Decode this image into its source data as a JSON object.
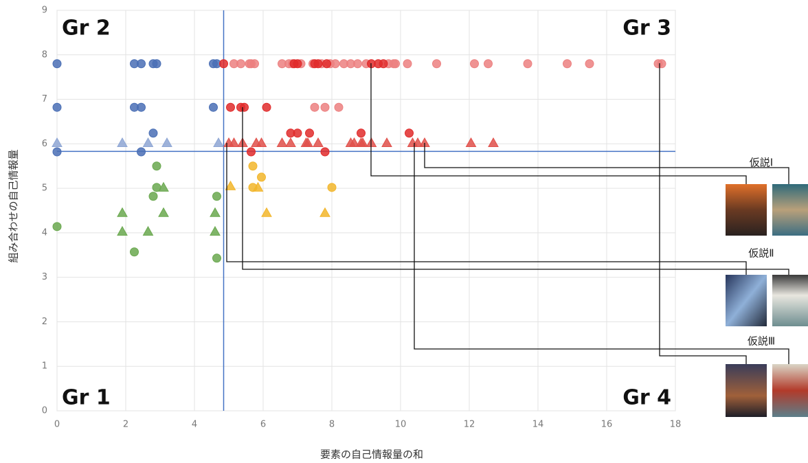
{
  "chart_data": {
    "type": "scatter",
    "x_label": "要素の自己情報量の和",
    "y_label": "組み合わせの自己情報量",
    "xlim": [
      0,
      18
    ],
    "ylim": [
      0,
      9
    ],
    "xticks": [
      0,
      2,
      4,
      6,
      8,
      10,
      12,
      14,
      16,
      18
    ],
    "yticks": [
      0,
      1,
      2,
      3,
      4,
      5,
      6,
      7,
      8,
      9
    ],
    "grid": true,
    "reference_lines": {
      "x": 4.85,
      "y": 5.83,
      "color": "#4472c4"
    },
    "quadrant_labels": [
      "Gr 1",
      "Gr 2",
      "Gr 3",
      "Gr 4"
    ],
    "hypotheses": [
      "仮説Ⅰ",
      "仮説Ⅱ",
      "仮説Ⅲ"
    ],
    "series": [
      {
        "marker": "circle",
        "color": "#4a6fb5",
        "x": [
          0,
          0,
          0,
          2.25,
          2.45,
          2.8,
          2.9,
          2.25,
          2.45,
          2.8,
          2.45,
          4.55,
          4.65,
          4.55
        ],
        "values": [
          7.8,
          6.82,
          5.82,
          7.8,
          7.8,
          7.8,
          7.8,
          6.82,
          6.82,
          6.24,
          5.82,
          7.8,
          7.8,
          6.82
        ]
      },
      {
        "marker": "triangle",
        "color": "#8ea6d4",
        "x": [
          0,
          1.9,
          2.65,
          3.2,
          4.7
        ],
        "values": [
          6.02,
          6.02,
          6.02,
          6.02,
          6.02
        ]
      },
      {
        "marker": "circle",
        "color": "#ec8080",
        "x": [
          5.15,
          5.35,
          5.6,
          5.65,
          5.75,
          6.55,
          6.75,
          6.85,
          7.1,
          7.45,
          7.7,
          7.95,
          8.1,
          8.35,
          8.55,
          8.75,
          9.0,
          9.65,
          9.8,
          9.85,
          10.2,
          11.05,
          12.15,
          12.55,
          13.7,
          14.85,
          15.5,
          17.5,
          17.6,
          7.5,
          7.8,
          8.2
        ],
        "values": [
          7.8,
          7.8,
          7.8,
          7.8,
          7.8,
          7.8,
          7.8,
          7.8,
          7.8,
          7.8,
          7.8,
          7.8,
          7.8,
          7.8,
          7.8,
          7.8,
          7.8,
          7.8,
          7.8,
          7.8,
          7.8,
          7.8,
          7.8,
          7.8,
          7.8,
          7.8,
          7.8,
          7.8,
          7.8,
          6.82,
          6.82,
          6.82
        ]
      },
      {
        "marker": "circle",
        "color": "#e02b2b",
        "x": [
          4.85,
          5.05,
          5.35,
          5.45,
          6.1,
          5.65,
          7.8,
          6.8,
          7.0,
          7.35,
          8.85,
          10.25,
          9.15,
          9.35,
          9.5,
          7.5,
          7.6,
          6.9,
          7.0,
          7.85
        ],
        "values": [
          7.8,
          6.82,
          6.82,
          6.82,
          6.82,
          5.82,
          5.82,
          6.24,
          6.24,
          6.24,
          6.24,
          6.24,
          7.8,
          7.8,
          7.8,
          7.8,
          7.8,
          7.8,
          7.8,
          7.8
        ]
      },
      {
        "marker": "triangle",
        "color": "#e0504a",
        "x": [
          5.0,
          5.15,
          5.4,
          5.8,
          5.95,
          6.55,
          6.8,
          7.25,
          7.3,
          7.6,
          8.55,
          8.65,
          8.85,
          8.9,
          9.15,
          9.6,
          10.35,
          10.5,
          10.7,
          12.05,
          12.7
        ],
        "values": [
          6.02,
          6.02,
          6.02,
          6.02,
          6.02,
          6.02,
          6.02,
          6.02,
          6.02,
          6.02,
          6.02,
          6.02,
          6.02,
          6.02,
          6.02,
          6.02,
          6.02,
          6.02,
          6.02,
          6.02,
          6.02
        ]
      },
      {
        "marker": "circle",
        "color": "#6aa84f",
        "x": [
          0,
          2.25,
          2.9,
          2.9,
          2.8,
          4.65,
          4.65
        ],
        "values": [
          4.14,
          3.57,
          5.5,
          5.02,
          4.82,
          4.82,
          3.43
        ]
      },
      {
        "marker": "triangle",
        "color": "#6aa84f",
        "x": [
          1.9,
          1.9,
          2.65,
          3.1,
          3.1,
          4.6,
          4.6
        ],
        "values": [
          4.45,
          4.03,
          4.03,
          5.02,
          4.45,
          4.45,
          4.03
        ]
      },
      {
        "marker": "circle",
        "color": "#f2b62c",
        "x": [
          5.7,
          5.95,
          5.7,
          8.0
        ],
        "values": [
          5.5,
          5.25,
          5.02,
          5.02
        ]
      },
      {
        "marker": "triangle",
        "color": "#f2b62c",
        "x": [
          5.05,
          5.85,
          6.1,
          7.8
        ],
        "values": [
          5.05,
          5.02,
          4.45,
          4.45
        ]
      }
    ]
  }
}
